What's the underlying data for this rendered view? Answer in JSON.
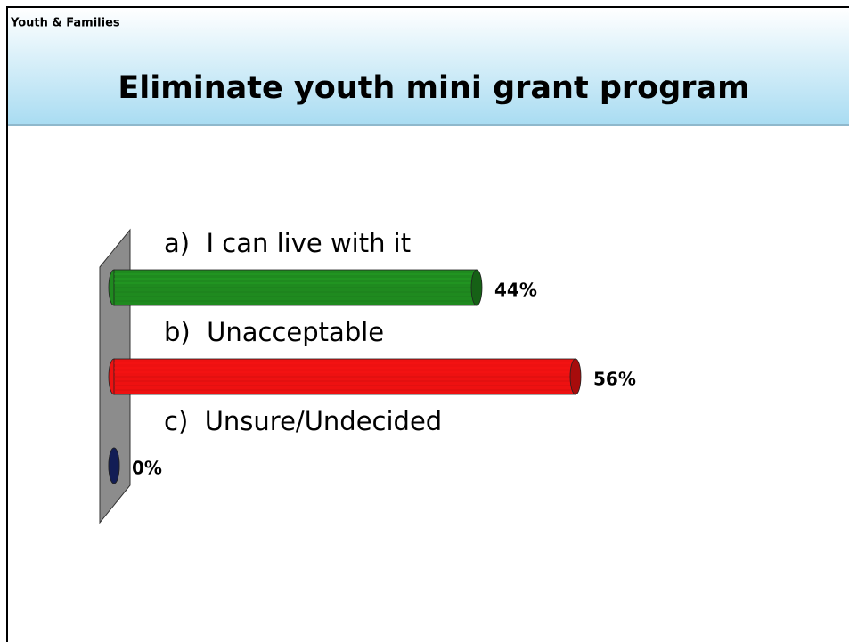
{
  "header": {
    "section": "Youth & Families"
  },
  "chart_data": {
    "type": "bar3d",
    "title": "Eliminate youth mini grant program",
    "categories": [
      "a)  I can live with it",
      "b)  Unacceptable",
      "c)  Unsure/Undecided"
    ],
    "values": [
      44,
      56,
      0
    ],
    "value_labels": [
      "44%",
      "56%",
      "0%"
    ],
    "colors": [
      "#1f8a1f",
      "#ee1111",
      "#1a2a7a"
    ]
  }
}
